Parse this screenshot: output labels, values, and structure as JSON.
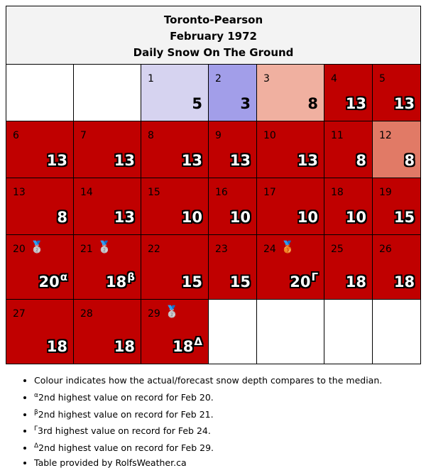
{
  "title": {
    "line1": "Toronto-Pearson",
    "line2": "February 1972",
    "line3": "Daily Snow On The Ground"
  },
  "colors": {
    "above_median": "#c00000",
    "day1": "#d6d3f0",
    "day2": "#a29ee9",
    "day3": "#f0b0a0",
    "day12": "#e17a66",
    "empty": "#ffffff",
    "title_bg": "#f3f3f3"
  },
  "days": {
    "d1": {
      "num": "1",
      "val": "5"
    },
    "d2": {
      "num": "2",
      "val": "3"
    },
    "d3": {
      "num": "3",
      "val": "8"
    },
    "d4": {
      "num": "4",
      "val": "13"
    },
    "d5": {
      "num": "5",
      "val": "13"
    },
    "d6": {
      "num": "6",
      "val": "13"
    },
    "d7": {
      "num": "7",
      "val": "13"
    },
    "d8": {
      "num": "8",
      "val": "13"
    },
    "d9": {
      "num": "9",
      "val": "13"
    },
    "d10": {
      "num": "10",
      "val": "13"
    },
    "d11": {
      "num": "11",
      "val": "8"
    },
    "d12": {
      "num": "12",
      "val": "8"
    },
    "d13": {
      "num": "13",
      "val": "8"
    },
    "d14": {
      "num": "14",
      "val": "13"
    },
    "d15": {
      "num": "15",
      "val": "10"
    },
    "d16": {
      "num": "16",
      "val": "10"
    },
    "d17": {
      "num": "17",
      "val": "10"
    },
    "d18": {
      "num": "18",
      "val": "10"
    },
    "d19": {
      "num": "19",
      "val": "15"
    },
    "d20": {
      "num": "20",
      "val": "20",
      "sup": "α",
      "medal": "🥈"
    },
    "d21": {
      "num": "21",
      "val": "18",
      "sup": "β",
      "medal": "🥈"
    },
    "d22": {
      "num": "22",
      "val": "15"
    },
    "d23": {
      "num": "23",
      "val": "15"
    },
    "d24": {
      "num": "24",
      "val": "20",
      "sup": "Γ",
      "medal": "🥉"
    },
    "d25": {
      "num": "25",
      "val": "18"
    },
    "d26": {
      "num": "26",
      "val": "18"
    },
    "d27": {
      "num": "27",
      "val": "18"
    },
    "d28": {
      "num": "28",
      "val": "18"
    },
    "d29": {
      "num": "29",
      "val": "18",
      "sup": "Δ",
      "medal": "🥈"
    }
  },
  "notes": {
    "n0": "Colour indicates how the actual/forecast snow depth compares to the median.",
    "n1_sup": "α",
    "n1": "2nd highest value on record for Feb 20.",
    "n2_sup": "β",
    "n2": "2nd highest value on record for Feb 21.",
    "n3_sup": "Γ",
    "n3": "3rd highest value on record for Feb 24.",
    "n4_sup": "Δ",
    "n4": "2nd highest value on record for Feb 29.",
    "n5": "Table provided by RolfsWeather.ca"
  }
}
